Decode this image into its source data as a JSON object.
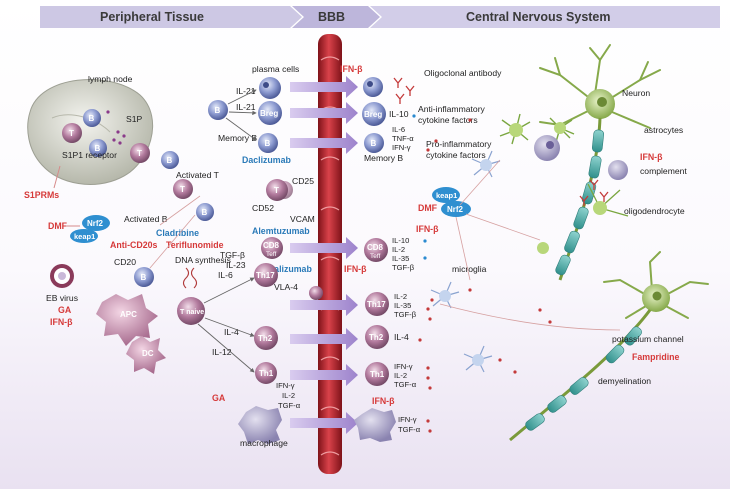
{
  "header": {
    "peripheral": "Peripheral Tissue",
    "bbb": "BBB",
    "cns": "Central Nervous System"
  },
  "peripheral": {
    "lymph_node": "lymph node",
    "s1p": "S1P",
    "s1p1_receptor": "S1P1 receptor",
    "plasma_cells": "plasma cells",
    "il21_a": "IL-21",
    "il21_b": "IL-21",
    "breg": "Breg",
    "memory_b": "Memory B",
    "activated_t": "Activated T",
    "activated_b": "Activated B",
    "nrf2": "Nrf2",
    "keap1": "keap1",
    "cd20": "CD20",
    "dna_synthesis": "DNA synthesis",
    "eb_virus": "EB virus",
    "apc": "APC",
    "dc": "DC",
    "t_naive": "T naive",
    "tgf_b": "TGF-β",
    "il23": "IL-23",
    "il6": "IL-6",
    "il4": "IL-4",
    "il12": "IL-12",
    "th17": "Th17",
    "th2": "Th2",
    "th1": "Th1",
    "cd8": "CD8",
    "t_eff": "Teff",
    "cd25": "CD25",
    "cd52": "CD52",
    "vcam": "VCAM",
    "vla4": "VLA-4",
    "th1_cytokines": [
      "IFN-γ",
      "IL-2",
      "TGF-α"
    ],
    "macrophage": "macrophage",
    "b": "B",
    "t": "T"
  },
  "drugs": {
    "s1prms": "S1PRMs",
    "dmf": "DMF",
    "anti_cd20s": "Anti-CD20s",
    "cladribine": "Cladribine",
    "teriflunomide": "Teriflunomide",
    "daclizumab": "Daclizumab",
    "alemtuzumab": "Alemtuzumab",
    "natalizumab": "Natalizumab",
    "ga": "GA",
    "ifn_b": "IFN-β",
    "ga2": "GA",
    "ifn_b_bbb_top": "IFN-β",
    "ifn_b_bbb_mid": "IFN-β",
    "ifn_b_bbb_bot": "IFN-β",
    "dmf_cns": "DMF",
    "ifn_b_cns": "IFN-β",
    "ifn_b_right": "IFN-β",
    "fampridine": "Fampridine"
  },
  "cns": {
    "oligoclonal_antibody": "Oligoclonal antibody",
    "breg": "Breg",
    "il10": "IL-10",
    "anti_inflammatory": "Anti-inflammatory",
    "cytokine_factors": "cytokine factors",
    "pro_inflammatory": "Pro-inflammatory",
    "cytokine_factors_2": "cytokine factors",
    "b_cytokines": [
      "IL-6",
      "TNF-α",
      "IFN-γ"
    ],
    "memory_b": "Memory B",
    "neuron": "Neuron",
    "astrocytes": "astrocytes",
    "complement": "complement",
    "oligodendrocyte": "oligodendrocyte",
    "keap1": "keap1",
    "nrf2": "Nrf2",
    "cd8": "CD8",
    "t_eff": "Teff",
    "cd8_cytokines": [
      "IL-10",
      "IL-2",
      "IL-35",
      "TGF-β"
    ],
    "microglia": "microglia",
    "th17": "Th17",
    "th17_cytokines": [
      "IL-2",
      "IL-35",
      "TGF-β"
    ],
    "th2": "Th2",
    "th2_cytokine": "IL-4",
    "th1": "Th1",
    "th1_cytokines": [
      "IFN-γ",
      "IL-2",
      "TGF-α"
    ],
    "macro_cytokines": [
      "IFN-γ",
      "TGF-α"
    ],
    "potassium_channel": "potassium channel",
    "demyelination": "demyelination"
  },
  "colors": {
    "header_bg": "#c9c4e2",
    "vessel": "#b8232c",
    "b_cell": "#7d8cc4",
    "t_cell": "#b07a9b",
    "drug_red": "#d63a3a",
    "drug_blue": "#2a7ab8",
    "nrf2": "#2f8fd0",
    "arrow": "#a88ad0"
  }
}
